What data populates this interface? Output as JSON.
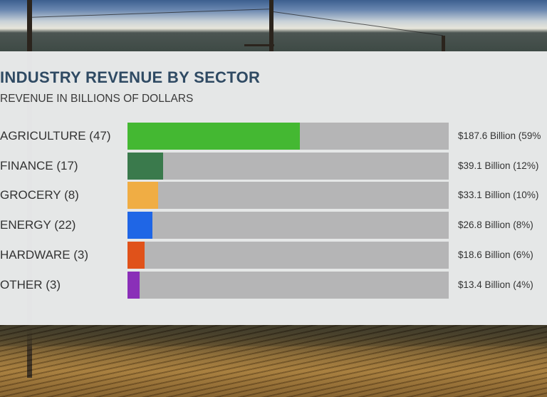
{
  "chart_data": {
    "type": "bar",
    "orientation": "horizontal",
    "title": "INDUSTRY REVENUE BY SECTOR",
    "subtitle": "REVENUE IN BILLIONS OF DOLLARS",
    "categories": [
      "AGRICULTURE (47)",
      "FINANCE (17)",
      "GROCERY (8)",
      "ENERGY (22)",
      "HARDWARE (3)",
      "OTHER (3)"
    ],
    "values": [
      187.6,
      39.1,
      33.1,
      26.8,
      18.6,
      13.4
    ],
    "value_labels": [
      "$187.6 Billion (59%",
      "$39.1 Billion (12%)",
      "$33.1 Billion  (10%)",
      "$26.8 Billion (8%)",
      "$18.6 Billion (6%)",
      "$13.4 Billion (4%)"
    ],
    "percents": [
      59,
      12,
      10,
      8,
      6,
      4
    ],
    "colors": [
      "#44b832",
      "#3a7a4c",
      "#f0ad44",
      "#1f66e6",
      "#e0521a",
      "#8a2fb8"
    ],
    "track_color": "#b5b5b6",
    "xlim": [
      0,
      350
    ],
    "xlabel": "",
    "ylabel": "",
    "grid": false,
    "legend": "none"
  }
}
